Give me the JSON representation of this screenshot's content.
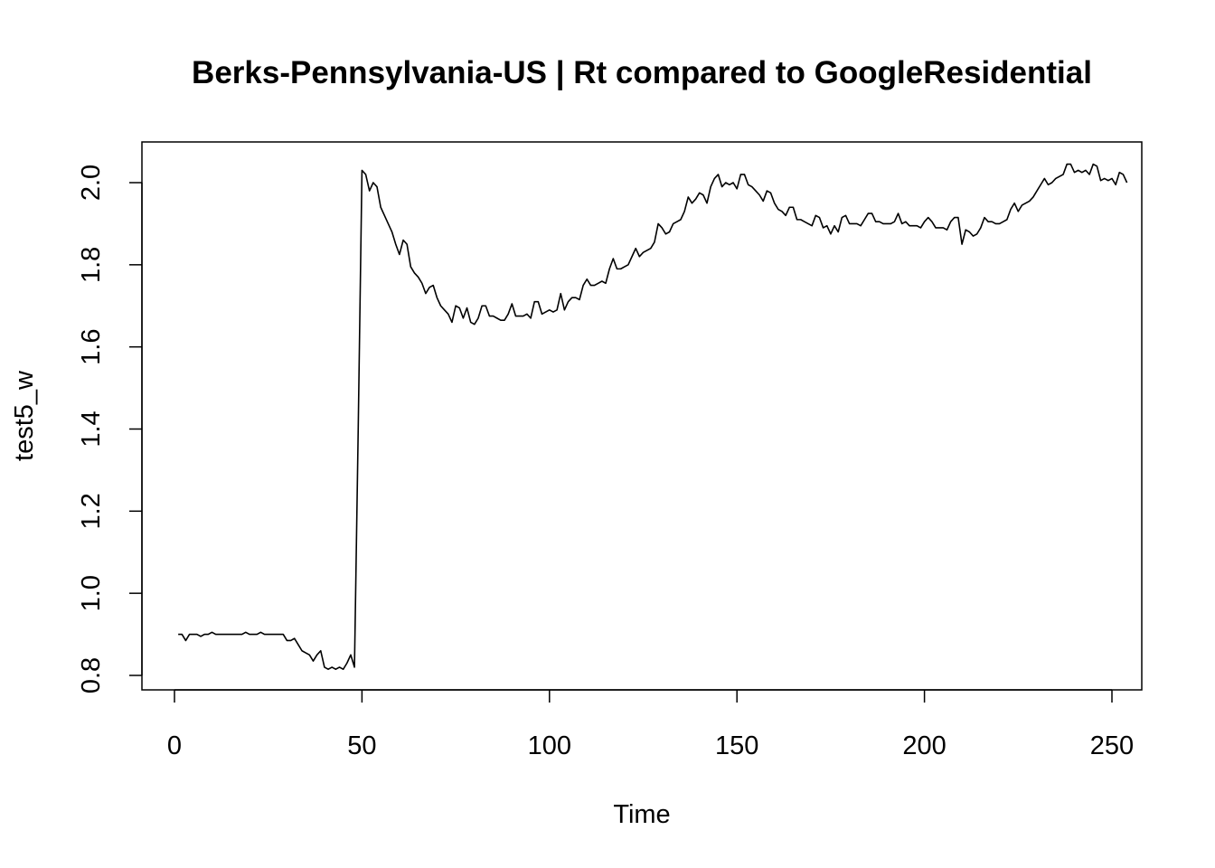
{
  "chart_data": {
    "type": "line",
    "title": "Berks-Pennsylvania-US | Rt compared to GoogleResidential",
    "xlabel": "Time",
    "ylabel": "test5_w",
    "xlim": [
      1,
      248
    ],
    "ylim": [
      0.8,
      2.05
    ],
    "x_ticks": [
      0,
      50,
      100,
      150,
      200,
      250
    ],
    "y_ticks": [
      0.8,
      1.0,
      1.2,
      1.4,
      1.6,
      1.8,
      2.0
    ],
    "x_tick_labels": [
      "0",
      "50",
      "100",
      "150",
      "200",
      "250"
    ],
    "y_tick_labels": [
      "0.8",
      "1.0",
      "1.2",
      "1.4",
      "1.6",
      "1.8",
      "2.0"
    ],
    "grid": false,
    "line_color": "#000000",
    "series": [
      {
        "x_start": 1,
        "values": [
          0.9,
          0.9,
          0.885,
          0.9,
          0.9,
          0.9,
          0.895,
          0.9,
          0.9,
          0.905,
          0.9,
          0.9,
          0.9,
          0.9,
          0.9,
          0.9,
          0.9,
          0.9,
          0.905,
          0.9,
          0.9,
          0.9,
          0.905,
          0.9,
          0.9,
          0.9,
          0.9,
          0.9,
          0.9,
          0.885,
          0.885,
          0.89,
          0.875,
          0.86,
          0.855,
          0.85,
          0.835,
          0.85,
          0.86,
          0.82,
          0.815,
          0.82,
          0.815,
          0.82,
          0.815,
          0.83,
          0.85,
          0.82,
          1.4,
          2.03,
          2.02,
          1.98,
          2.0,
          1.99,
          1.94,
          1.92,
          1.9,
          1.88,
          1.85,
          1.825,
          1.86,
          1.85,
          1.795,
          1.78,
          1.77,
          1.755,
          1.73,
          1.745,
          1.75,
          1.72,
          1.7,
          1.69,
          1.68,
          1.66,
          1.7,
          1.695,
          1.67,
          1.695,
          1.66,
          1.655,
          1.67,
          1.7,
          1.7,
          1.675,
          1.675,
          1.67,
          1.665,
          1.665,
          1.68,
          1.705,
          1.675,
          1.675,
          1.675,
          1.68,
          1.67,
          1.71,
          1.71,
          1.68,
          1.685,
          1.69,
          1.685,
          1.69,
          1.73,
          1.69,
          1.71,
          1.72,
          1.72,
          1.715,
          1.75,
          1.765,
          1.75,
          1.75,
          1.755,
          1.76,
          1.755,
          1.79,
          1.815,
          1.79,
          1.79,
          1.795,
          1.8,
          1.82,
          1.84,
          1.82,
          1.83,
          1.835,
          1.84,
          1.855,
          1.9,
          1.89,
          1.875,
          1.88,
          1.9,
          1.905,
          1.91,
          1.93,
          1.965,
          1.95,
          1.96,
          1.975,
          1.97,
          1.95,
          1.99,
          2.01,
          2.02,
          1.99,
          2.0,
          1.995,
          2.0,
          1.985,
          2.02,
          2.02,
          1.995,
          1.99,
          1.98,
          1.97,
          1.955,
          1.98,
          1.975,
          1.95,
          1.935,
          1.93,
          1.92,
          1.94,
          1.94,
          1.91,
          1.91,
          1.905,
          1.9,
          1.895,
          1.92,
          1.915,
          1.89,
          1.895,
          1.875,
          1.895,
          1.88,
          1.915,
          1.92,
          1.9,
          1.9,
          1.9,
          1.895,
          1.91,
          1.925,
          1.925,
          1.905,
          1.905,
          1.9,
          1.9,
          1.9,
          1.905,
          1.925,
          1.9,
          1.905,
          1.895,
          1.895,
          1.895,
          1.89,
          1.905,
          1.915,
          1.905,
          1.89,
          1.89,
          1.89,
          1.885,
          1.905,
          1.915,
          1.915,
          1.85,
          1.885,
          1.88,
          1.87,
          1.875,
          1.89,
          1.915,
          1.905,
          1.905,
          1.9,
          1.9,
          1.905,
          1.91,
          1.935,
          1.95,
          1.93,
          1.945,
          1.95,
          1.955,
          1.965,
          1.98,
          1.995,
          2.01,
          1.995,
          2.0,
          2.01,
          2.015,
          2.02,
          2.045,
          2.045,
          2.025,
          2.03,
          2.025,
          2.03,
          2.02,
          2.045,
          2.04,
          2.005,
          2.01,
          2.005,
          2.01,
          1.995,
          2.025,
          2.02,
          2.0
        ]
      }
    ]
  }
}
